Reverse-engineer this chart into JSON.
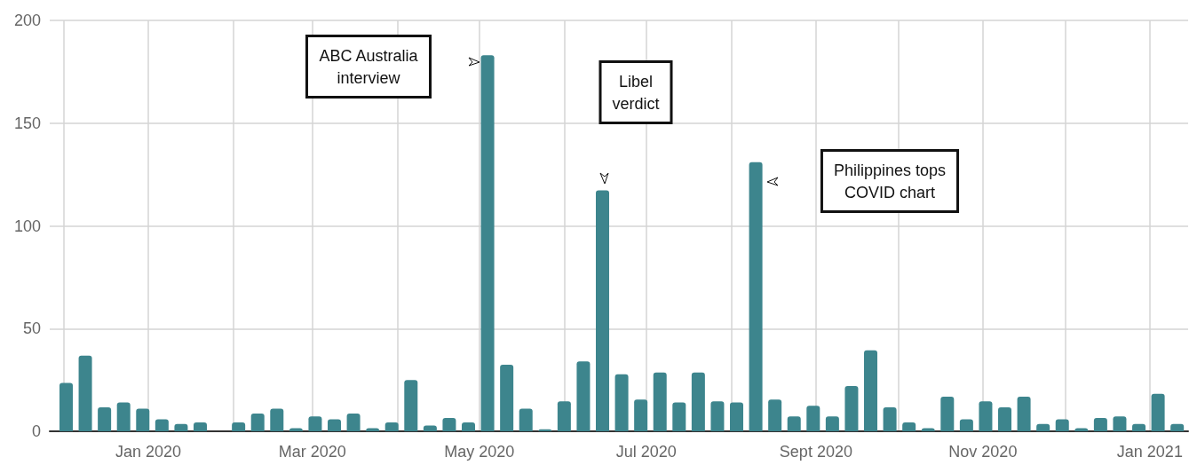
{
  "chart_data": {
    "type": "bar",
    "x": [
      "2019-12-02",
      "2019-12-09",
      "2019-12-16",
      "2019-12-23",
      "2019-12-30",
      "2020-01-06",
      "2020-01-13",
      "2020-01-20",
      "2020-01-27",
      "2020-02-03",
      "2020-02-10",
      "2020-02-17",
      "2020-02-24",
      "2020-03-02",
      "2020-03-09",
      "2020-03-16",
      "2020-03-23",
      "2020-03-30",
      "2020-04-06",
      "2020-04-13",
      "2020-04-20",
      "2020-04-27",
      "2020-05-04",
      "2020-05-11",
      "2020-05-18",
      "2020-05-25",
      "2020-06-01",
      "2020-06-08",
      "2020-06-15",
      "2020-06-22",
      "2020-06-29",
      "2020-07-06",
      "2020-07-13",
      "2020-07-20",
      "2020-07-27",
      "2020-08-03",
      "2020-08-10",
      "2020-08-17",
      "2020-08-24",
      "2020-08-31",
      "2020-09-07",
      "2020-09-14",
      "2020-09-21",
      "2020-09-28",
      "2020-10-05",
      "2020-10-12",
      "2020-10-19",
      "2020-10-26",
      "2020-11-02",
      "2020-11-09",
      "2020-11-16",
      "2020-11-23",
      "2020-11-30",
      "2020-12-07",
      "2020-12-14",
      "2020-12-21",
      "2020-12-28",
      "2021-01-04",
      "2021-01-11"
    ],
    "values": [
      23.5,
      36.8,
      11.7,
      14,
      11,
      5.8,
      3.6,
      4.3,
      0,
      4.3,
      8.6,
      11,
      1.5,
      7.2,
      5.8,
      8.6,
      1.5,
      4.3,
      25,
      2.8,
      6.5,
      4.3,
      183,
      32.4,
      11,
      1,
      14.6,
      34,
      117.3,
      27.8,
      15.4,
      28.6,
      14,
      28.6,
      14.6,
      14,
      131,
      15.4,
      7.2,
      12.4,
      7.2,
      22,
      39.4,
      11.7,
      4.3,
      1.5,
      16.8,
      5.8,
      14.6,
      11.7,
      16.8,
      3.6,
      5.8,
      1.5,
      6.5,
      7.2,
      3.6,
      18.3,
      3.6
    ],
    "color": "#3d858d",
    "xlim": [
      "2019-11-26",
      "2021-01-15"
    ],
    "xticks": [
      {
        "value": "2019-12-01",
        "label": null
      },
      {
        "value": "2020-01-01",
        "label": "Jan 2020"
      },
      {
        "value": "2020-02-01",
        "label": null
      },
      {
        "value": "2020-03-01",
        "label": "Mar 2020"
      },
      {
        "value": "2020-04-01",
        "label": null
      },
      {
        "value": "2020-05-01",
        "label": "May 2020"
      },
      {
        "value": "2020-06-01",
        "label": null
      },
      {
        "value": "2020-07-01",
        "label": "Jul 2020"
      },
      {
        "value": "2020-08-01",
        "label": null
      },
      {
        "value": "2020-09-01",
        "label": "Sept 2020"
      },
      {
        "value": "2020-10-01",
        "label": null
      },
      {
        "value": "2020-11-01",
        "label": "Nov 2020"
      },
      {
        "value": "2020-12-01",
        "label": null
      },
      {
        "value": "2021-01-01",
        "label": "Jan 2021"
      }
    ],
    "ylim": [
      0,
      200
    ],
    "yticks": [
      0,
      50,
      100,
      150,
      200
    ],
    "grid": true,
    "annotations": [
      "ABC Australia\ninterview",
      "Libel\nverdict",
      "Philippines tops\nCOVID chart"
    ]
  }
}
